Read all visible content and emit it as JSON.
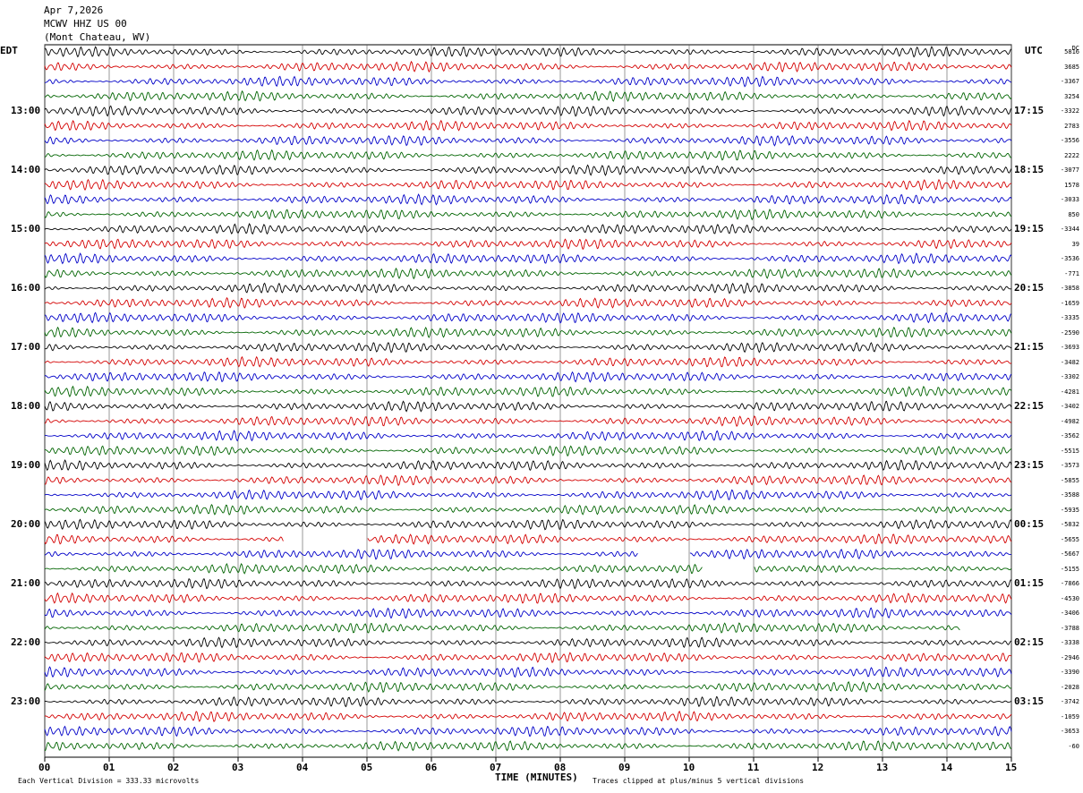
{
  "header": {
    "date": "Apr 7,2026",
    "station": "MCWV HHZ US 00",
    "location": "(Mont Chateau, WV)"
  },
  "left_tz": "EDT",
  "right_tz": "UTC",
  "dc_label": "DC",
  "x_axis_title": "TIME (MINUTES)",
  "footer": {
    "left": "Each Vertical Division =  333.33 microvolts",
    "right": "Traces clipped at plus/minus 5 vertical divisions"
  },
  "colors": {
    "trace": [
      "#000000",
      "#d40000",
      "#0000c8",
      "#006400"
    ],
    "grid": "#000000"
  },
  "chart_data": {
    "type": "line",
    "title": "",
    "xlabel": "TIME (MINUTES)",
    "xlim": [
      0,
      15
    ],
    "x_ticks": [
      "00",
      "01",
      "02",
      "03",
      "04",
      "05",
      "06",
      "07",
      "08",
      "09",
      "10",
      "11",
      "12",
      "13",
      "14",
      "15"
    ],
    "rows_per_hour": 4,
    "trace_count": 48,
    "left_hour_labels": [
      "13:00",
      "14:00",
      "15:00",
      "16:00",
      "17:00",
      "18:00",
      "19:00",
      "20:00",
      "21:00",
      "22:00",
      "23:00"
    ],
    "right_hour_labels": [
      "17:15",
      "18:15",
      "19:15",
      "20:15",
      "21:15",
      "22:15",
      "23:15",
      "00:15",
      "01:15",
      "02:15",
      "03:15"
    ],
    "dc_offsets": [
      "5816",
      "3685",
      "-3367",
      "3254",
      "-3322",
      "2783",
      "-3556",
      "2222",
      "-3077",
      "1578",
      "-3033",
      "850",
      "-3344",
      "39",
      "-3536",
      "-771",
      "-3858",
      "-1659",
      "-3335",
      "-2590",
      "-3693",
      "-3482",
      "-3302",
      "-4281",
      "-3402",
      "-4982",
      "-3562",
      "-5515",
      "-3573",
      "-5855",
      "-3588",
      "-5935",
      "-5832",
      "-5655",
      "-5667",
      "-5155",
      "-7866",
      "-4530",
      "-3406",
      "-3788",
      "-3338",
      "-2946",
      "-3390",
      "-2028",
      "-3742",
      "-1059",
      "-3653",
      "-60"
    ],
    "gaps": [
      {
        "trace": 33,
        "start_min": 3.7,
        "end_min": 5.0
      },
      {
        "trace": 34,
        "start_min": 9.2,
        "end_min": 10.0
      },
      {
        "trace": 35,
        "start_min": 10.2,
        "end_min": 11.0
      },
      {
        "trace": 39,
        "start_min": 14.2,
        "end_min": 15.0
      }
    ]
  }
}
